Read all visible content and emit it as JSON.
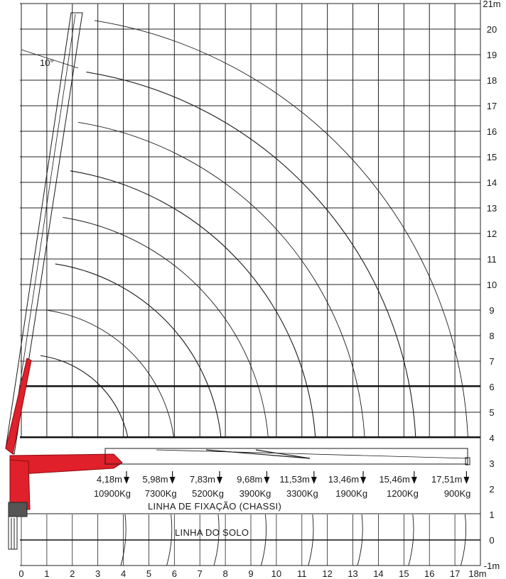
{
  "diagram": {
    "x_ticks": [
      "0",
      "1",
      "2",
      "3",
      "4",
      "5",
      "6",
      "7",
      "8",
      "9",
      "10",
      "11",
      "12",
      "13",
      "14",
      "15",
      "16",
      "17",
      "18m"
    ],
    "y_ticks": [
      "-1m",
      "0",
      "1",
      "2",
      "3",
      "4",
      "5",
      "6",
      "7",
      "8",
      "9",
      "10",
      "11",
      "12",
      "13",
      "14",
      "15",
      "16",
      "17",
      "18",
      "19",
      "20",
      "21m"
    ],
    "angle_label": "10°",
    "fixation_line_label": "LINHA DE FIXAÇÃO (CHASSI)",
    "ground_line_label": "LINHA DO SOLO",
    "reach": [
      {
        "distance": "4,18m",
        "load": "10900Kg",
        "x": 4.18
      },
      {
        "distance": "5,98m",
        "load": "7300Kg",
        "x": 5.98
      },
      {
        "distance": "7,83m",
        "load": "5200Kg",
        "x": 7.83
      },
      {
        "distance": "9,68m",
        "load": "3900Kg",
        "x": 9.68
      },
      {
        "distance": "11,53m",
        "load": "3300Kg",
        "x": 11.53
      },
      {
        "distance": "13,46m",
        "load": "1900Kg",
        "x": 13.46
      },
      {
        "distance": "15,46m",
        "load": "1200Kg",
        "x": 15.46
      },
      {
        "distance": "17,51m",
        "load": "900Kg",
        "x": 17.51
      }
    ],
    "colors": {
      "crane": "#e0202a",
      "line": "#1a1a1a",
      "grid": "#222222"
    }
  }
}
